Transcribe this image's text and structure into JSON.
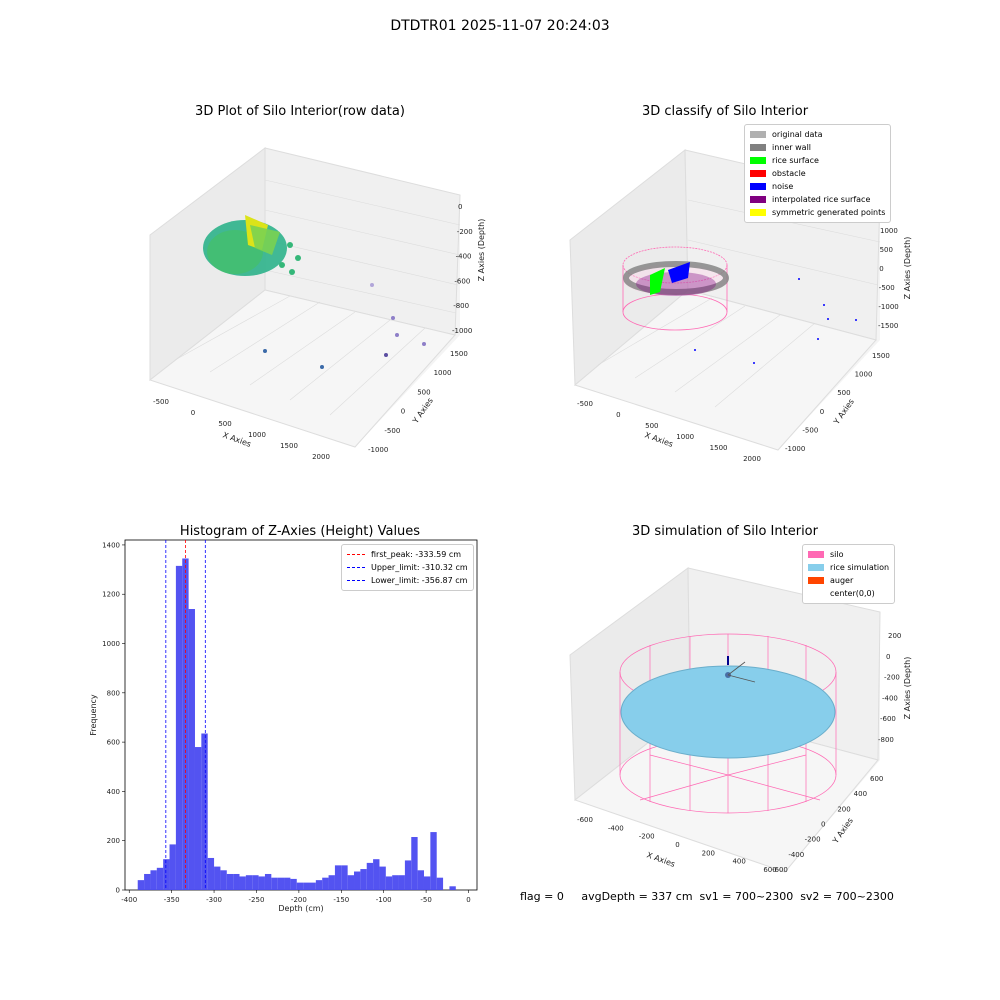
{
  "suptitle": "DTDTR01 2025-11-07 20:24:03",
  "panels": {
    "raw": {
      "title": "3D Plot of Silo Interior(row data)",
      "xlabel": "X Axies",
      "ylabel": "Y Axies",
      "zlabel": "Z Axies (Depth)",
      "xticks": [
        "-500",
        "0",
        "500",
        "1000",
        "1500",
        "2000"
      ],
      "yticks": [
        "1500",
        "1000",
        "500",
        "0",
        "-500",
        "-1000"
      ],
      "zticks": [
        "0",
        "-200",
        "-400",
        "-600",
        "-800",
        "-1000"
      ]
    },
    "classify": {
      "title": "3D classify of Silo Interior",
      "xlabel": "X Axies",
      "ylabel": "Y Axies",
      "zlabel": "Z Axies (Depth)",
      "xticks": [
        "-500",
        "0",
        "500",
        "1000",
        "1500",
        "2000"
      ],
      "yticks": [
        "1500",
        "1000",
        "500",
        "0",
        "-500",
        "-1000"
      ],
      "zticks": [
        "1000",
        "500",
        "0",
        "-500",
        "-1000",
        "-1500"
      ],
      "legend": [
        {
          "label": "original data",
          "color": "#b0b0b0"
        },
        {
          "label": "inner wall",
          "color": "#808080"
        },
        {
          "label": "rice surface",
          "color": "#00ff00"
        },
        {
          "label": "obstacle",
          "color": "#ff0000"
        },
        {
          "label": "noise",
          "color": "#0000ff"
        },
        {
          "label": "interpolated rice surface",
          "color": "#800080"
        },
        {
          "label": "symmetric generated points",
          "color": "#ffff00"
        }
      ]
    },
    "simulation": {
      "title": "3D simulation of Silo Interior",
      "xlabel": "X Axies",
      "ylabel": "Y Axies",
      "zlabel": "Z Axies (Depth)",
      "xticks": [
        "-600",
        "-400",
        "-200",
        "0",
        "200",
        "400",
        "600"
      ],
      "yticks": [
        "600",
        "400",
        "200",
        "0",
        "-200",
        "-400",
        "-600"
      ],
      "zticks": [
        "200",
        "0",
        "-200",
        "-400",
        "-600",
        "-800"
      ],
      "legend": [
        {
          "label": "silo",
          "color": "#ff69b4"
        },
        {
          "label": "rice simulation",
          "color": "#87ceeb"
        },
        {
          "label": "auger",
          "color": "#ff4500"
        },
        {
          "label": "center(0,0)",
          "color": ""
        }
      ]
    }
  },
  "chart_data": {
    "type": "bar",
    "title": "Histogram of Z-Axies (Height) Values",
    "xlabel": "Depth (cm)",
    "ylabel": "Frequency",
    "xlim": [
      -405,
      10
    ],
    "ylim": [
      0,
      1420
    ],
    "xticks": [
      -400,
      -350,
      -300,
      -250,
      -200,
      -150,
      -100,
      -50,
      0
    ],
    "yticks": [
      0,
      200,
      400,
      600,
      800,
      1000,
      1200,
      1400
    ],
    "bin_width": 7.5,
    "bins": [
      [
        -390,
        40
      ],
      [
        -382.5,
        65
      ],
      [
        -375,
        80
      ],
      [
        -367.5,
        90
      ],
      [
        -360,
        125
      ],
      [
        -352.5,
        185
      ],
      [
        -345,
        1315
      ],
      [
        -337.5,
        1345
      ],
      [
        -330,
        1140
      ],
      [
        -322.5,
        580
      ],
      [
        -315,
        635
      ],
      [
        -307.5,
        130
      ],
      [
        -300,
        95
      ],
      [
        -292.5,
        80
      ],
      [
        -285,
        65
      ],
      [
        -277.5,
        65
      ],
      [
        -270,
        55
      ],
      [
        -262.5,
        60
      ],
      [
        -255,
        60
      ],
      [
        -247.5,
        55
      ],
      [
        -240,
        65
      ],
      [
        -232.5,
        50
      ],
      [
        -225,
        50
      ],
      [
        -217.5,
        50
      ],
      [
        -210,
        45
      ],
      [
        -202.5,
        30
      ],
      [
        -195,
        30
      ],
      [
        -187.5,
        30
      ],
      [
        -180,
        40
      ],
      [
        -172.5,
        50
      ],
      [
        -165,
        60
      ],
      [
        -157.5,
        100
      ],
      [
        -150,
        100
      ],
      [
        -142.5,
        60
      ],
      [
        -135,
        75
      ],
      [
        -127.5,
        85
      ],
      [
        -120,
        110
      ],
      [
        -112.5,
        125
      ],
      [
        -105,
        95
      ],
      [
        -97.5,
        55
      ],
      [
        -90,
        60
      ],
      [
        -82.5,
        60
      ],
      [
        -75,
        120
      ],
      [
        -67.5,
        215
      ],
      [
        -60,
        80
      ],
      [
        -52.5,
        55
      ],
      [
        -45,
        235
      ],
      [
        -37.5,
        50
      ],
      [
        -22.5,
        15
      ]
    ],
    "vlines": [
      {
        "label": "first_peak: -333.59 cm",
        "x": -333.59,
        "color": "#ff0000"
      },
      {
        "label": "Upper_limit: -310.32 cm",
        "x": -310.32,
        "color": "#0000ff"
      },
      {
        "label": "Lower_limit: -356.87 cm",
        "x": -356.87,
        "color": "#0000ff"
      }
    ],
    "bar_color": "#4a4af0",
    "legend_position": "top-right"
  },
  "status": "flag = 0     avgDepth = 337 cm  sv1 = 700~2300  sv2 = 700~2300"
}
